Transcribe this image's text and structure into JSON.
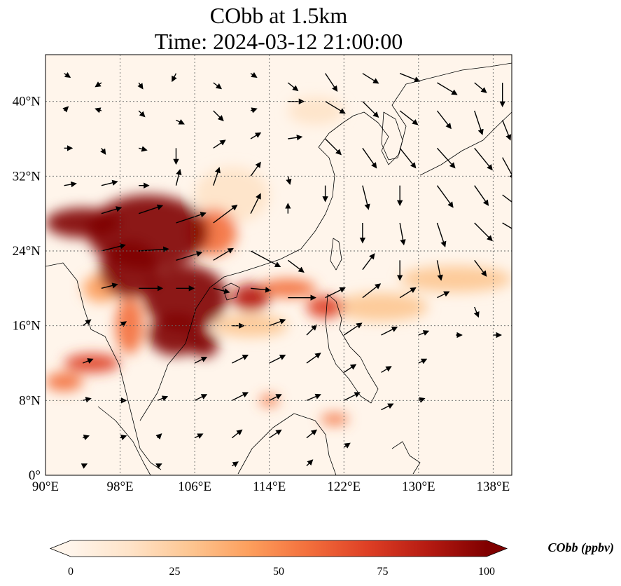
{
  "title": {
    "line1": "CObb at 1.5km",
    "line2": "Time: 2024-03-12 21:00:00"
  },
  "map": {
    "lon_range": [
      90,
      140
    ],
    "lat_range": [
      0,
      45
    ],
    "x_ticks": [
      {
        "value": 90,
        "label": "90°E"
      },
      {
        "value": 98,
        "label": "98°E"
      },
      {
        "value": 106,
        "label": "106°E"
      },
      {
        "value": 114,
        "label": "114°E"
      },
      {
        "value": 122,
        "label": "122°E"
      },
      {
        "value": 130,
        "label": "130°E"
      },
      {
        "value": 138,
        "label": "138°E"
      }
    ],
    "y_ticks": [
      {
        "value": 0,
        "label": "0°"
      },
      {
        "value": 8,
        "label": "8°N"
      },
      {
        "value": 16,
        "label": "16°N"
      },
      {
        "value": 24,
        "label": "24°N"
      },
      {
        "value": 32,
        "label": "32°N"
      },
      {
        "value": 40,
        "label": "40°N"
      }
    ],
    "gridlines": true,
    "background_color": "#fff5eb",
    "colormap": "OrRd",
    "plumes": [
      {
        "lon": 101,
        "lat": 26,
        "rx": 6.5,
        "ry": 4.0,
        "value": 100
      },
      {
        "lon": 94,
        "lat": 27,
        "rx": 4.0,
        "ry": 1.6,
        "value": 100
      },
      {
        "lon": 99,
        "lat": 22,
        "rx": 3.2,
        "ry": 3.0,
        "value": 100
      },
      {
        "lon": 105,
        "lat": 19,
        "rx": 4.5,
        "ry": 3.5,
        "value": 100
      },
      {
        "lon": 104,
        "lat": 15,
        "rx": 3.0,
        "ry": 2.2,
        "value": 95
      },
      {
        "lon": 107,
        "lat": 14,
        "rx": 1.5,
        "ry": 1.4,
        "value": 100
      },
      {
        "lon": 108,
        "lat": 26,
        "rx": 2.5,
        "ry": 2.5,
        "value": 55
      },
      {
        "lon": 112,
        "lat": 19,
        "rx": 2.0,
        "ry": 1.5,
        "value": 80
      },
      {
        "lon": 116,
        "lat": 20,
        "rx": 3.0,
        "ry": 1.0,
        "value": 50
      },
      {
        "lon": 120,
        "lat": 18,
        "rx": 2.0,
        "ry": 1.2,
        "value": 70
      },
      {
        "lon": 95,
        "lat": 12,
        "rx": 3.0,
        "ry": 1.0,
        "value": 65
      },
      {
        "lon": 92,
        "lat": 10,
        "rx": 2.0,
        "ry": 1.0,
        "value": 55
      },
      {
        "lon": 114,
        "lat": 8,
        "rx": 1.0,
        "ry": 0.6,
        "value": 50
      },
      {
        "lon": 121,
        "lat": 6,
        "rx": 1.5,
        "ry": 0.6,
        "value": 60
      },
      {
        "lon": 126,
        "lat": 18,
        "rx": 5.0,
        "ry": 1.5,
        "value": 35
      },
      {
        "lon": 134,
        "lat": 21,
        "rx": 6.0,
        "ry": 1.4,
        "value": 30
      },
      {
        "lon": 112,
        "lat": 16,
        "rx": 4.0,
        "ry": 1.2,
        "value": 35
      },
      {
        "lon": 99,
        "lat": 16,
        "rx": 1.5,
        "ry": 3.0,
        "value": 60
      },
      {
        "lon": 96,
        "lat": 20,
        "rx": 2.0,
        "ry": 1.5,
        "value": 45
      },
      {
        "lon": 110,
        "lat": 30,
        "rx": 4.0,
        "ry": 3.0,
        "value": 15
      },
      {
        "lon": 119,
        "lat": 39,
        "rx": 3.0,
        "ry": 1.5,
        "value": 12
      }
    ],
    "wind_vectors": [
      {
        "lon": 92,
        "lat": 43,
        "u": 0.3,
        "v": -0.2
      },
      {
        "lon": 96,
        "lat": 42,
        "u": -0.3,
        "v": -0.2
      },
      {
        "lon": 100,
        "lat": 42,
        "u": 0.2,
        "v": -0.3
      },
      {
        "lon": 104,
        "lat": 43,
        "u": -0.2,
        "v": -0.4
      },
      {
        "lon": 108,
        "lat": 42,
        "u": 0.4,
        "v": -0.3
      },
      {
        "lon": 112,
        "lat": 43,
        "u": 0.3,
        "v": -0.2
      },
      {
        "lon": 116,
        "lat": 42,
        "u": 0.5,
        "v": -0.4
      },
      {
        "lon": 120,
        "lat": 43,
        "u": 0.6,
        "v": -0.9
      },
      {
        "lon": 124,
        "lat": 43,
        "u": 0.8,
        "v": -0.5
      },
      {
        "lon": 128,
        "lat": 43,
        "u": 1.0,
        "v": -0.4
      },
      {
        "lon": 132,
        "lat": 42,
        "u": 1.0,
        "v": -0.6
      },
      {
        "lon": 136,
        "lat": 42,
        "u": 0.6,
        "v": -0.5
      },
      {
        "lon": 139,
        "lat": 42,
        "u": 0.0,
        "v": -1.2
      },
      {
        "lon": 92,
        "lat": 39,
        "u": 0.2,
        "v": 0.2
      },
      {
        "lon": 96,
        "lat": 39,
        "u": -0.3,
        "v": 0.1
      },
      {
        "lon": 100,
        "lat": 39,
        "u": 0.3,
        "v": -0.3
      },
      {
        "lon": 104,
        "lat": 38,
        "u": 0.4,
        "v": -0.2
      },
      {
        "lon": 108,
        "lat": 39,
        "u": 0.5,
        "v": -0.5
      },
      {
        "lon": 112,
        "lat": 39,
        "u": 0.3,
        "v": 0.1
      },
      {
        "lon": 116,
        "lat": 40,
        "u": 0.8,
        "v": 0.0
      },
      {
        "lon": 120,
        "lat": 40,
        "u": 1.0,
        "v": -0.6
      },
      {
        "lon": 124,
        "lat": 40,
        "u": 0.8,
        "v": -0.8
      },
      {
        "lon": 128,
        "lat": 39,
        "u": 0.9,
        "v": -0.7
      },
      {
        "lon": 132,
        "lat": 39,
        "u": 0.7,
        "v": -0.9
      },
      {
        "lon": 136,
        "lat": 39,
        "u": 0.4,
        "v": -1.2
      },
      {
        "lon": 139,
        "lat": 38,
        "u": 0.4,
        "v": -1.0
      },
      {
        "lon": 92,
        "lat": 35,
        "u": 0.4,
        "v": 0.0
      },
      {
        "lon": 96,
        "lat": 35,
        "u": 0.2,
        "v": -0.3
      },
      {
        "lon": 100,
        "lat": 35,
        "u": 0.4,
        "v": -0.1
      },
      {
        "lon": 104,
        "lat": 35,
        "u": 0.0,
        "v": -0.8
      },
      {
        "lon": 108,
        "lat": 35,
        "u": 0.6,
        "v": 0.4
      },
      {
        "lon": 112,
        "lat": 36,
        "u": 0.5,
        "v": 0.3
      },
      {
        "lon": 116,
        "lat": 36,
        "u": 0.7,
        "v": 0.1
      },
      {
        "lon": 120,
        "lat": 36,
        "u": 0.8,
        "v": -0.8
      },
      {
        "lon": 124,
        "lat": 35,
        "u": 0.7,
        "v": -1.0
      },
      {
        "lon": 128,
        "lat": 35,
        "u": 0.8,
        "v": -1.0
      },
      {
        "lon": 132,
        "lat": 35,
        "u": 0.9,
        "v": -1.0
      },
      {
        "lon": 136,
        "lat": 35,
        "u": 0.9,
        "v": -1.1
      },
      {
        "lon": 139,
        "lat": 34,
        "u": 0.6,
        "v": -1.1
      },
      {
        "lon": 92,
        "lat": 31,
        "u": 0.6,
        "v": 0.1
      },
      {
        "lon": 96,
        "lat": 31,
        "u": 0.8,
        "v": 0.2
      },
      {
        "lon": 100,
        "lat": 31,
        "u": 0.5,
        "v": 0.0
      },
      {
        "lon": 104,
        "lat": 31,
        "u": 0.2,
        "v": 0.8
      },
      {
        "lon": 108,
        "lat": 31,
        "u": 0.3,
        "v": 0.9
      },
      {
        "lon": 112,
        "lat": 32,
        "u": 0.5,
        "v": 0.7
      },
      {
        "lon": 116,
        "lat": 32,
        "u": 0.1,
        "v": -0.4
      },
      {
        "lon": 120,
        "lat": 31,
        "u": 0.0,
        "v": -0.8
      },
      {
        "lon": 124,
        "lat": 31,
        "u": 0.3,
        "v": -1.2
      },
      {
        "lon": 128,
        "lat": 31,
        "u": 0.0,
        "v": -1.0
      },
      {
        "lon": 132,
        "lat": 31,
        "u": 0.8,
        "v": -1.1
      },
      {
        "lon": 136,
        "lat": 31,
        "u": 0.7,
        "v": -1.0
      },
      {
        "lon": 139,
        "lat": 30,
        "u": 1.2,
        "v": -0.9
      },
      {
        "lon": 96,
        "lat": 28,
        "u": 1.0,
        "v": 0.3
      },
      {
        "lon": 100,
        "lat": 28,
        "u": 1.2,
        "v": 0.4
      },
      {
        "lon": 104,
        "lat": 27,
        "u": 1.5,
        "v": 0.5
      },
      {
        "lon": 108,
        "lat": 27,
        "u": 1.2,
        "v": 0.9
      },
      {
        "lon": 112,
        "lat": 28,
        "u": 0.5,
        "v": 1.0
      },
      {
        "lon": 116,
        "lat": 28,
        "u": 0.0,
        "v": 0.5
      },
      {
        "lon": 124,
        "lat": 27,
        "u": 0.0,
        "v": -1.0
      },
      {
        "lon": 128,
        "lat": 27,
        "u": 0.2,
        "v": -1.1
      },
      {
        "lon": 132,
        "lat": 27,
        "u": 0.4,
        "v": -1.2
      },
      {
        "lon": 136,
        "lat": 27,
        "u": 0.9,
        "v": -0.9
      },
      {
        "lon": 139,
        "lat": 27,
        "u": 1.0,
        "v": -0.6
      },
      {
        "lon": 96,
        "lat": 24,
        "u": 1.2,
        "v": 0.3
      },
      {
        "lon": 100,
        "lat": 24,
        "u": 1.5,
        "v": 0.1
      },
      {
        "lon": 104,
        "lat": 23,
        "u": 1.3,
        "v": 0.4
      },
      {
        "lon": 108,
        "lat": 23,
        "u": 1.0,
        "v": 0.6
      },
      {
        "lon": 112,
        "lat": 24,
        "u": 1.5,
        "v": -0.8
      },
      {
        "lon": 116,
        "lat": 23,
        "u": 0.8,
        "v": -0.6
      },
      {
        "lon": 124,
        "lat": 22,
        "u": 0.6,
        "v": 0.8
      },
      {
        "lon": 128,
        "lat": 23,
        "u": 0.0,
        "v": -1.0
      },
      {
        "lon": 132,
        "lat": 23,
        "u": 0.2,
        "v": -1.0
      },
      {
        "lon": 136,
        "lat": 23,
        "u": 0.6,
        "v": -0.8
      },
      {
        "lon": 96,
        "lat": 20,
        "u": 0.8,
        "v": 0.2
      },
      {
        "lon": 100,
        "lat": 20,
        "u": 1.2,
        "v": 0.0
      },
      {
        "lon": 104,
        "lat": 20,
        "u": 0.9,
        "v": 0.0
      },
      {
        "lon": 108,
        "lat": 20,
        "u": 0.8,
        "v": -0.2
      },
      {
        "lon": 112,
        "lat": 20,
        "u": 1.0,
        "v": -0.1
      },
      {
        "lon": 116,
        "lat": 19,
        "u": 1.4,
        "v": 0.0
      },
      {
        "lon": 120,
        "lat": 19,
        "u": 1.0,
        "v": 0.5
      },
      {
        "lon": 124,
        "lat": 19,
        "u": 0.9,
        "v": 0.7
      },
      {
        "lon": 128,
        "lat": 19,
        "u": 0.8,
        "v": 0.5
      },
      {
        "lon": 132,
        "lat": 19,
        "u": 0.6,
        "v": 0.3
      },
      {
        "lon": 136,
        "lat": 18,
        "u": 0.2,
        "v": -0.5
      },
      {
        "lon": 94,
        "lat": 16,
        "u": 0.4,
        "v": 0.3
      },
      {
        "lon": 98,
        "lat": 16,
        "u": 0.3,
        "v": 0.2
      },
      {
        "lon": 110,
        "lat": 16,
        "u": 0.6,
        "v": 0.0
      },
      {
        "lon": 114,
        "lat": 16,
        "u": 0.8,
        "v": 0.3
      },
      {
        "lon": 118,
        "lat": 15,
        "u": 0.5,
        "v": 0.5
      },
      {
        "lon": 122,
        "lat": 15,
        "u": 0.9,
        "v": 0.6
      },
      {
        "lon": 126,
        "lat": 15,
        "u": 0.8,
        "v": 0.4
      },
      {
        "lon": 130,
        "lat": 15,
        "u": 0.5,
        "v": 0.2
      },
      {
        "lon": 134,
        "lat": 15,
        "u": 0.3,
        "v": 0.0
      },
      {
        "lon": 138,
        "lat": 15,
        "u": 0.4,
        "v": 0.0
      },
      {
        "lon": 94,
        "lat": 12,
        "u": 0.5,
        "v": 0.2
      },
      {
        "lon": 106,
        "lat": 12,
        "u": 0.6,
        "v": 0.3
      },
      {
        "lon": 110,
        "lat": 12,
        "u": 0.8,
        "v": 0.4
      },
      {
        "lon": 114,
        "lat": 12,
        "u": 0.8,
        "v": 0.4
      },
      {
        "lon": 118,
        "lat": 12,
        "u": 0.7,
        "v": 0.5
      },
      {
        "lon": 122,
        "lat": 11,
        "u": 0.6,
        "v": 0.4
      },
      {
        "lon": 126,
        "lat": 11,
        "u": 0.5,
        "v": 0.3
      },
      {
        "lon": 130,
        "lat": 12,
        "u": 0.4,
        "v": 0.2
      },
      {
        "lon": 94,
        "lat": 8,
        "u": 0.4,
        "v": 0.1
      },
      {
        "lon": 98,
        "lat": 8,
        "u": 0.3,
        "v": 0.0
      },
      {
        "lon": 102,
        "lat": 8,
        "u": 0.5,
        "v": 0.2
      },
      {
        "lon": 106,
        "lat": 8,
        "u": 0.6,
        "v": 0.3
      },
      {
        "lon": 110,
        "lat": 8,
        "u": 0.8,
        "v": 0.4
      },
      {
        "lon": 114,
        "lat": 8,
        "u": 0.6,
        "v": 0.3
      },
      {
        "lon": 118,
        "lat": 8,
        "u": 0.7,
        "v": 0.3
      },
      {
        "lon": 122,
        "lat": 8,
        "u": 0.8,
        "v": 0.4
      },
      {
        "lon": 126,
        "lat": 7,
        "u": 0.6,
        "v": 0.3
      },
      {
        "lon": 130,
        "lat": 8,
        "u": 0.3,
        "v": 0.1
      },
      {
        "lon": 94,
        "lat": 4,
        "u": 0.3,
        "v": 0.1
      },
      {
        "lon": 98,
        "lat": 4,
        "u": 0.3,
        "v": 0.1
      },
      {
        "lon": 102,
        "lat": 4,
        "u": 0.2,
        "v": 0.2
      },
      {
        "lon": 106,
        "lat": 4,
        "u": 0.4,
        "v": 0.2
      },
      {
        "lon": 110,
        "lat": 4,
        "u": 0.5,
        "v": 0.4
      },
      {
        "lon": 114,
        "lat": 4,
        "u": 0.6,
        "v": 0.4
      },
      {
        "lon": 118,
        "lat": 4,
        "u": 0.5,
        "v": 0.4
      },
      {
        "lon": 122,
        "lat": 3,
        "u": 0.3,
        "v": 0.2
      },
      {
        "lon": 94,
        "lat": 1,
        "u": 0.2,
        "v": 0.1
      },
      {
        "lon": 102,
        "lat": 1,
        "u": 0.2,
        "v": 0.1
      },
      {
        "lon": 110,
        "lat": 1,
        "u": 0.3,
        "v": 0.2
      },
      {
        "lon": 118,
        "lat": 1,
        "u": 0.3,
        "v": 0.3
      }
    ]
  },
  "colorbar": {
    "label": "CObb (ppbv)",
    "min": 0,
    "max": 100,
    "extend": "both",
    "ticks": [
      {
        "value": 0,
        "label": "0"
      },
      {
        "value": 25,
        "label": "25"
      },
      {
        "value": 50,
        "label": "50"
      },
      {
        "value": 75,
        "label": "75"
      },
      {
        "value": 100,
        "label": "100"
      }
    ],
    "colors": [
      "#fff5eb",
      "#fee3c8",
      "#fdc692",
      "#fd9f5d",
      "#f36f3c",
      "#de3f25",
      "#b61b12",
      "#800000"
    ]
  }
}
